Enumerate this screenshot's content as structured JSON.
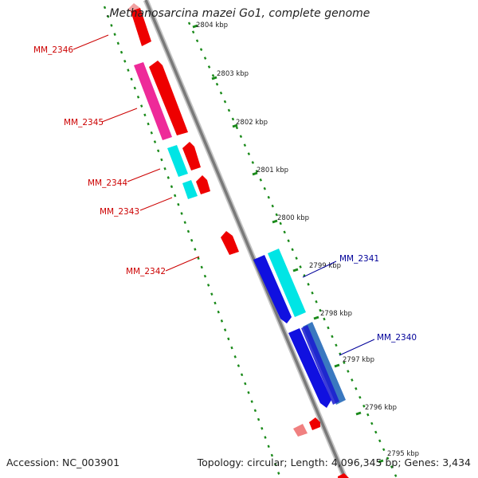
{
  "title": ".Methanosarcina mazei Go1, complete genome",
  "footer": {
    "accession": "Accession: NC_003901",
    "summary": "Topology: circular; Length: 4,096,345 bp; Genes: 3,434"
  },
  "ruler_ticks": [
    "2804 kbp",
    "2803 kbp",
    "2802 kbp",
    "2801 kbp",
    "2800 kbp",
    "2799 kbp",
    "2798 kbp",
    "2797 kbp",
    "2796 kbp",
    "2795 kbp"
  ],
  "gene_labels": [
    {
      "name": "MM_2346",
      "color": "#cc0000"
    },
    {
      "name": "MM_2345",
      "color": "#cc0000"
    },
    {
      "name": "MM_2344",
      "color": "#cc0000"
    },
    {
      "name": "MM_2343",
      "color": "#cc0000"
    },
    {
      "name": "MM_2342",
      "color": "#cc0000"
    },
    {
      "name": "MM_2341",
      "color": "#000099"
    },
    {
      "name": "MM_2340",
      "color": "#000099"
    }
  ],
  "colors": {
    "forward_cds": "#ee0000",
    "reverse_cds": "#1010e0",
    "cyan_feature": "#00e5e5",
    "magenta_feature": "#ee2a99",
    "steelblue_feature": "#3a78c0",
    "backbone": "#7a7a7a",
    "tick_dots": "#1a8a1a"
  }
}
